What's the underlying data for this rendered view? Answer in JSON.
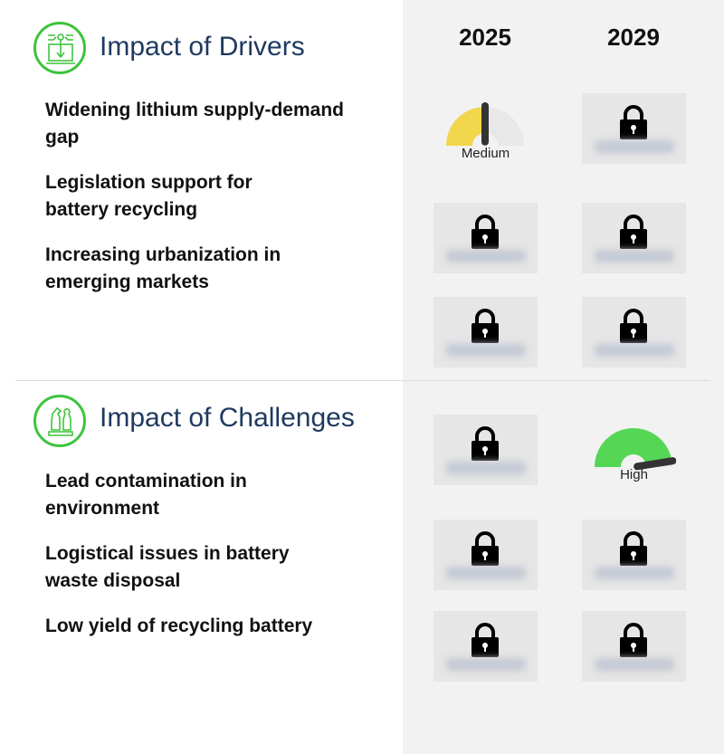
{
  "years": [
    "2025",
    "2029"
  ],
  "drivers": {
    "title": "Impact of Drivers",
    "icon": "laptop-network-icon",
    "items": [
      "Widening lithium supply-demand gap",
      "Legislation support for battery recycling",
      "Increasing urbanization in emerging markets"
    ],
    "cells": [
      [
        {
          "type": "gauge",
          "label": "Medium",
          "level": 0.5,
          "color": "#f2d64b"
        },
        {
          "type": "locked"
        }
      ],
      [
        {
          "type": "locked"
        },
        {
          "type": "locked"
        }
      ],
      [
        {
          "type": "locked"
        },
        {
          "type": "locked"
        }
      ]
    ]
  },
  "challenges": {
    "title": "Impact of Challenges",
    "icon": "chess-pieces-icon",
    "items": [
      "Lead contamination in environment",
      "Logistical issues in battery waste disposal",
      "Low yield of recycling battery"
    ],
    "cells": [
      [
        {
          "type": "locked"
        },
        {
          "type": "gauge",
          "label": "High",
          "level": 0.95,
          "color": "#55d655"
        }
      ],
      [
        {
          "type": "locked"
        },
        {
          "type": "locked"
        }
      ],
      [
        {
          "type": "locked"
        },
        {
          "type": "locked"
        }
      ]
    ]
  },
  "colors": {
    "heading": "#1f3a60",
    "icon_ring": "#3dc43d",
    "panel": "#f2f2f2"
  }
}
